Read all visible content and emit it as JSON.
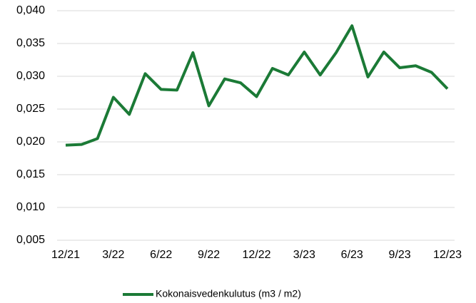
{
  "chart_data": {
    "type": "line",
    "categories": [
      "12/21",
      null,
      null,
      "3/22",
      null,
      null,
      "6/22",
      null,
      null,
      "9/22",
      null,
      null,
      "12/22",
      null,
      null,
      "3/23",
      null,
      null,
      "6/23",
      null,
      null,
      "9/23",
      null,
      null,
      "12/23"
    ],
    "series": [
      {
        "name": "Kokonaisvedenkulutus (m3 / m2)",
        "color": "#1b7a36",
        "values": [
          0.0195,
          0.0196,
          0.0205,
          0.0268,
          0.0242,
          0.0304,
          0.028,
          0.0279,
          0.0336,
          0.0255,
          0.0296,
          0.029,
          0.0269,
          0.0312,
          0.0302,
          0.0337,
          0.0302,
          0.0336,
          0.0377,
          0.0299,
          0.0337,
          0.0313,
          0.0316,
          0.0306,
          0.0281
        ]
      }
    ],
    "ylim": [
      0.005,
      0.04
    ],
    "yticks": [
      {
        "value": 0.005,
        "label": "0,005"
      },
      {
        "value": 0.01,
        "label": "0,010"
      },
      {
        "value": 0.015,
        "label": "0,015"
      },
      {
        "value": 0.02,
        "label": "0,020"
      },
      {
        "value": 0.025,
        "label": "0,025"
      },
      {
        "value": 0.03,
        "label": "0,030"
      },
      {
        "value": 0.035,
        "label": "0,035"
      },
      {
        "value": 0.04,
        "label": "0,040"
      }
    ],
    "grid": true,
    "legend": "bottom"
  }
}
